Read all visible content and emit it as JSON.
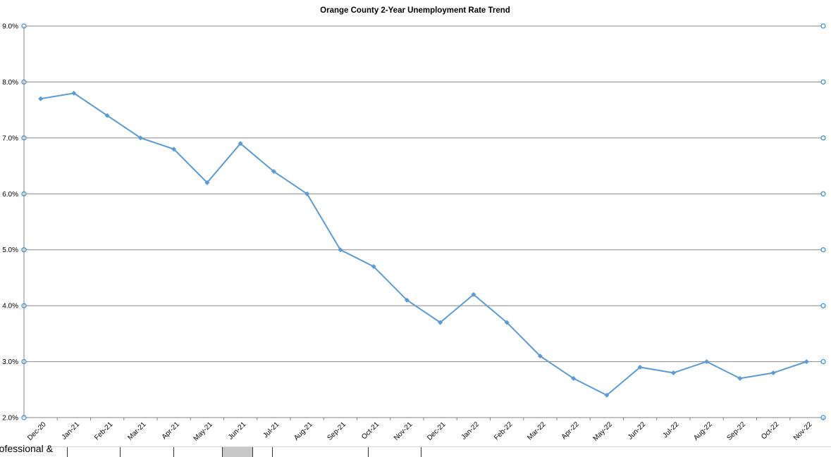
{
  "chart_data": {
    "type": "line",
    "title": "Orange County 2-Year Unemployment Rate Trend",
    "xlabel": "",
    "ylabel": "",
    "categories": [
      "Dec-20",
      "Jan-21",
      "Feb-21",
      "Mar-21",
      "Apr-21",
      "May-21",
      "Jun-21",
      "Jul-21",
      "Aug-21",
      "Sep-21",
      "Oct-21",
      "Nov-21",
      "Dec-21",
      "Jan-22",
      "Feb-22",
      "Mar-22",
      "Apr-22",
      "May-22",
      "Jun-22",
      "Jul-22",
      "Aug-22",
      "Sep-22",
      "Oct-22",
      "Nov-22"
    ],
    "series": [
      {
        "values": [
          7.7,
          7.8,
          7.4,
          7.0,
          6.8,
          6.2,
          6.9,
          6.4,
          6.0,
          5.0,
          4.7,
          4.1,
          3.7,
          4.2,
          3.7,
          3.1,
          2.7,
          2.4,
          2.9,
          2.8,
          3.0,
          2.7,
          2.8,
          3.0
        ],
        "color": "#5B9BD5",
        "marker": "diamond"
      }
    ],
    "ylim": [
      2.0,
      9.0
    ],
    "yticks": [
      "2.0%",
      "3.0%",
      "4.0%",
      "5.0%",
      "6.0%",
      "7.0%",
      "8.0%",
      "9.0%"
    ],
    "grid": true,
    "gridlines_selected": true,
    "legend": "none"
  },
  "sheet": {
    "partial_cell_text": "rofessional &"
  }
}
